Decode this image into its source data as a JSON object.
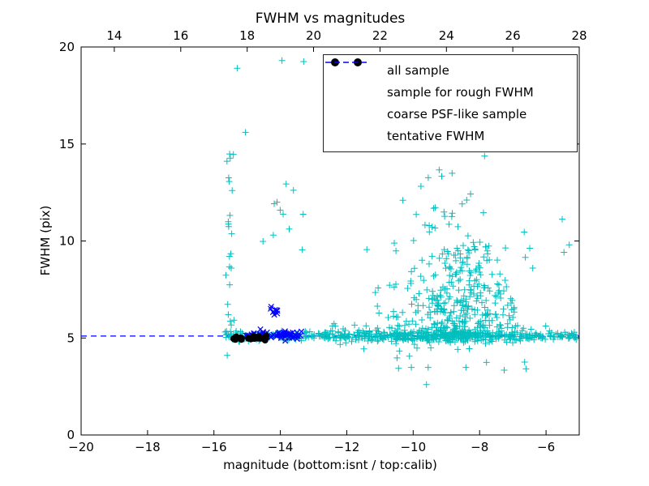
{
  "chart_data": {
    "type": "scatter",
    "title": "FWHM vs magnitudes",
    "xlabel": "magnitude (bottom:isnt / top:calib)",
    "ylabel": "FWHM (pix)",
    "xlim": [
      -20,
      -5
    ],
    "ylim": [
      0,
      20
    ],
    "grid": false,
    "legend_position": "upper right",
    "x_ticks": {
      "values": [
        -20,
        -18,
        -16,
        -14,
        -12,
        -10,
        -8,
        -6
      ],
      "labels": [
        "−20",
        "−18",
        "−16",
        "−14",
        "−12",
        "−10",
        "−8",
        "−6"
      ]
    },
    "y_ticks": {
      "values": [
        0,
        5,
        10,
        15,
        20
      ],
      "labels": [
        "0",
        "5",
        "10",
        "15",
        "20"
      ]
    },
    "top_axis": {
      "lim": [
        13,
        28
      ],
      "values": [
        14,
        16,
        18,
        20,
        22,
        24,
        26,
        28
      ],
      "labels": [
        "14",
        "16",
        "18",
        "20",
        "22",
        "24",
        "26",
        "28"
      ]
    },
    "tentative_fwhm": 5.1,
    "line_color": "#0000ff",
    "legend": [
      {
        "label": "all sample",
        "marker": "plus",
        "color": "#00bfbf"
      },
      {
        "label": "sample for rough FWHM",
        "marker": "x",
        "color": "#0000ff"
      },
      {
        "label": "coarse PSF-like sample",
        "marker": "dot",
        "color": "#000000"
      },
      {
        "label": "tentative FWHM",
        "marker": "dashed",
        "color": "#0000ff"
      }
    ],
    "series": [
      {
        "name": "all sample",
        "marker": "plus",
        "color": "#00bfbf",
        "clusters": [
          {
            "count": 430,
            "x": {
              "dist": "uniform",
              "a": -15.65,
              "b": -5.05
            },
            "y": {
              "dist": "gauss",
              "mean": 5.1,
              "std": 0.12
            }
          },
          {
            "count": 130,
            "x": {
              "dist": "uniform",
              "a": -12.6,
              "b": -6.9
            },
            "y": {
              "dist": "gauss",
              "mean": 5.15,
              "std": 0.3
            }
          },
          {
            "count": 200,
            "x": {
              "dist": "gauss",
              "mean": -8.55,
              "std": 0.7
            },
            "y": {
              "dist": "halfgauss",
              "base": 4.7,
              "std": 2.8
            }
          },
          {
            "count": 180,
            "x": {
              "dist": "gauss",
              "mean": -8.9,
              "std": 1.0
            },
            "y": {
              "dist": "halfgauss",
              "base": 4.9,
              "std": 2.2
            }
          },
          {
            "count": 26,
            "x": {
              "dist": "gauss",
              "mean": -15.52,
              "std": 0.07
            },
            "y": {
              "dist": "powuniform",
              "a": 5.3,
              "b": 14.6,
              "p": 1.4
            }
          },
          {
            "count": 30,
            "x": {
              "dist": "gauss",
              "mean": -8.8,
              "std": 1.6
            },
            "y": {
              "dist": "powuniform",
              "a": 9.0,
              "b": 19.2,
              "p": 1.3
            }
          },
          {
            "count": 12,
            "x": {
              "dist": "uniform",
              "a": -13.0,
              "b": -5.3
            },
            "y": {
              "dist": "uniform",
              "a": 9.0,
              "b": 18.5
            }
          },
          {
            "count": 12,
            "x": {
              "dist": "uniform",
              "a": -10.6,
              "b": -6.0
            },
            "y": {
              "dist": "uniform",
              "a": 3.3,
              "b": 4.5
            }
          },
          {
            "count": 10,
            "x": {
              "dist": "gauss",
              "mean": -13.9,
              "std": 0.25
            },
            "y": {
              "dist": "uniform",
              "a": 9.5,
              "b": 13.0
            }
          }
        ],
        "points": [
          [
            -15.3,
            18.9
          ],
          [
            -13.95,
            19.3
          ],
          [
            -13.3,
            19.25
          ],
          [
            -15.05,
            15.6
          ],
          [
            -12.55,
            14.9
          ],
          [
            -9.6,
            2.6
          ],
          [
            -15.6,
            4.1
          ],
          [
            -5.15,
            5.3
          ],
          [
            -5.3,
            9.8
          ],
          [
            -15.45,
            12.6
          ],
          [
            -14.1,
            12.0
          ],
          [
            -6.4,
            8.6
          ]
        ]
      },
      {
        "name": "sample for rough FWHM",
        "marker": "x",
        "color": "#0000ff",
        "clusters": [
          {
            "count": 60,
            "x": {
              "dist": "uniform",
              "a": -15.05,
              "b": -13.35
            },
            "y": {
              "dist": "gauss",
              "mean": 5.15,
              "std": 0.1
            }
          },
          {
            "count": 9,
            "x": {
              "dist": "gauss",
              "mean": -14.2,
              "std": 0.05
            },
            "y": {
              "dist": "gauss",
              "mean": 6.35,
              "std": 0.12
            }
          }
        ],
        "points": [
          [
            -13.85,
            4.85
          ],
          [
            -13.5,
            4.95
          ],
          [
            -14.6,
            5.45
          ]
        ]
      },
      {
        "name": "coarse PSF-like sample",
        "marker": "dot",
        "color": "#000000",
        "clusters": [
          {
            "count": 26,
            "x": {
              "dist": "uniform",
              "a": -15.52,
              "b": -14.42
            },
            "y": {
              "dist": "gauss",
              "mean": 5.0,
              "std": 0.06
            }
          }
        ],
        "points": []
      }
    ]
  }
}
